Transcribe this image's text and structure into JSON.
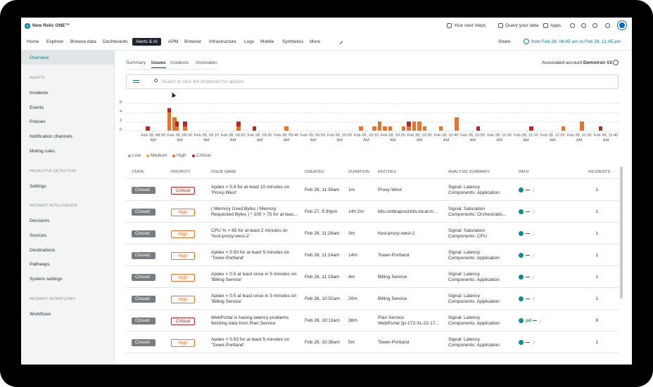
{
  "header": {
    "logo": "New Relic ONE™",
    "actions": [
      "Your next steps",
      "Query your data",
      "Apps"
    ]
  },
  "nav": {
    "items": [
      "Home",
      "Explorer",
      "Browse data",
      "Dashboards",
      "Alerts & AI",
      "APM",
      "Browser",
      "Infrastructure",
      "Logs",
      "Mobile",
      "Synthetics",
      "More"
    ],
    "active": "Alerts & AI",
    "share": "Share",
    "time_range": "from Feb 28, 08:45 am to Feb 28, 11:45 am"
  },
  "sidebar": {
    "overview": "Overview",
    "sections": [
      {
        "title": "ALERTS",
        "items": [
          "Incidents",
          "Events",
          "Policies",
          "Notification channels",
          "Muting rules"
        ]
      },
      {
        "title": "PROACTIVE DETECTION",
        "items": [
          "Settings"
        ]
      },
      {
        "title": "INCIDENT INTELLIGENCE",
        "items": [
          "Decisions",
          "Sources",
          "Destinations",
          "Pathways",
          "System settings"
        ]
      },
      {
        "title": "INCIDENT WORKFLOWS",
        "items": [
          "Workflows"
        ]
      }
    ]
  },
  "tabs": {
    "items": [
      "Summary",
      "Issues",
      "Incidents",
      "Anomalies"
    ],
    "active": "Issues",
    "account_label": "Associated account:",
    "account": "Demotron V2"
  },
  "filter": {
    "placeholder": "Search or click the dropdown for options"
  },
  "chart_data": {
    "type": "bar",
    "stacked": true,
    "x": [
      "08:48",
      "08:56",
      "08:58",
      "08:59",
      "09:02",
      "09:22",
      "09:28",
      "09:40",
      "10:08",
      "10:13",
      "10:15",
      "10:17",
      "10:19",
      "10:24",
      "10:26",
      "10:28",
      "10:30",
      "10:32",
      "10:38",
      "10:44",
      "10:52",
      "11:12",
      "11:24",
      "11:31",
      "11:38"
    ],
    "series": [
      {
        "name": "Low",
        "color": "#9aa1a5",
        "values": [
          0,
          0,
          0,
          0,
          0,
          0,
          0,
          0,
          0,
          0,
          0,
          0,
          0,
          0,
          0,
          0,
          0,
          0,
          0,
          0,
          0,
          0,
          0,
          0,
          0
        ]
      },
      {
        "name": "Medium",
        "color": "#efa637",
        "values": [
          0,
          0,
          0,
          0,
          0,
          0,
          0,
          0,
          0,
          0,
          0,
          0,
          0,
          0,
          0,
          0,
          0,
          0,
          0,
          0,
          0,
          0,
          0,
          0,
          0
        ]
      },
      {
        "name": "High",
        "color": "#e8742c",
        "values": [
          0,
          4,
          3,
          1,
          1,
          1,
          0,
          1,
          1,
          1,
          2,
          1,
          1,
          1,
          1,
          2,
          2,
          1,
          1,
          3,
          0,
          0,
          1,
          2,
          0
        ]
      },
      {
        "name": "Critical",
        "color": "#b8252c",
        "values": [
          1,
          1,
          0,
          1,
          1,
          1,
          1,
          0,
          0,
          0,
          0,
          0,
          0,
          0,
          1,
          0,
          0,
          0,
          0,
          0,
          1,
          1,
          0,
          0,
          1
        ]
      }
    ],
    "xlim": [
      "08:39",
      "11:45"
    ],
    "xticks": [
      {
        "value": "08:50",
        "label": "Feb 28, 08:50 AM"
      },
      {
        "value": "09:00",
        "label": "Feb 28, 09:00 AM"
      },
      {
        "value": "09:10",
        "label": "Feb 28, 09:10 AM"
      },
      {
        "value": "09:20",
        "label": "Feb 28, 09:20 AM"
      },
      {
        "value": "09:30",
        "label": "Feb 28, 09:30 AM"
      },
      {
        "value": "09:40",
        "label": "Feb 28, 09:40 AM"
      },
      {
        "value": "09:50",
        "label": "Feb 28, 09:50 AM"
      },
      {
        "value": "10:00",
        "label": "Feb 28, 10:00 AM"
      },
      {
        "value": "10:10",
        "label": "Feb 28, 10:10 AM"
      },
      {
        "value": "10:20",
        "label": "Feb 28, 10:20 AM"
      },
      {
        "value": "10:30",
        "label": "Feb 28, 10:30 AM"
      },
      {
        "value": "10:40",
        "label": "Feb 28, 10:40 AM"
      },
      {
        "value": "10:50",
        "label": "Feb 28, 10:50 AM"
      },
      {
        "value": "11:00",
        "label": "Feb 28, 11:00 AM"
      },
      {
        "value": "11:10",
        "label": "Feb 28, 11:10 AM"
      },
      {
        "value": "11:20",
        "label": "Feb 28, 11:20 AM"
      },
      {
        "value": "11:30",
        "label": "Feb 28, 11:30 AM"
      },
      {
        "value": "11:40",
        "label": "Feb 28, 11:40 AM"
      }
    ],
    "ylim": [
      0,
      6
    ],
    "yticks": [
      0,
      2,
      4,
      6
    ],
    "grid": true
  },
  "table": {
    "columns": [
      "STATE",
      "PRIORITY",
      "ISSUE NAME",
      "CREATED",
      "DURATION",
      "ENTITIES",
      "ANALYSIS SUMMARY",
      "PATH",
      "INCIDENTS"
    ],
    "rows": [
      {
        "state": "Closed",
        "priority": "Critical",
        "issue": "Apdex < 0.9 for at least 10 minutes on 'Proxy-West'",
        "created": "Feb 28, 11:39am",
        "duration": "1m",
        "entities": [
          "Proxy-West"
        ],
        "summary": [
          "Signal: Latency",
          "Components: Application"
        ],
        "incidents": "1"
      },
      {
        "state": "Closed",
        "priority": "High",
        "issue": "( Memory Used Bytes / Memory Requested Bytes ) * 100 > 75 for at leas...",
        "created": "Feb 27, 9:30pm",
        "duration": "14h 2m",
        "entities": [
          "k8s:umbraprod.k8s.local:m..."
        ],
        "summary": [
          "Signal: Saturation",
          "Components: Orchestratio..."
        ],
        "incidents": "1"
      },
      {
        "state": "Closed",
        "priority": "High",
        "issue": "CPU % > 85 for at least 2 minutes on 'host-proxy-west-2'",
        "created": "Feb 28, 11:28am",
        "duration": "3m",
        "entities": [
          "host-proxy-west-2"
        ],
        "summary": [
          "Signal: Saturation",
          "Components: CPU"
        ],
        "incidents": "1"
      },
      {
        "state": "Closed",
        "priority": "High",
        "issue": "Apdex < 0.93 for at least 5 minutes on 'Tower-Portland'",
        "created": "Feb 28, 11:14am",
        "duration": "14m",
        "entities": [
          "Tower-Portland"
        ],
        "summary": [
          "Signal: Latency",
          "Components: Application"
        ],
        "incidents": "1"
      },
      {
        "state": "Closed",
        "priority": "High",
        "issue": "Apdex < 0.5 at least once in 5 minutes on 'Billing Service'",
        "created": "Feb 28, 11:19am",
        "duration": "4m",
        "entities": [
          "Billing Service"
        ],
        "summary": [
          "Signal: Latency",
          "Components: Application"
        ],
        "incidents": "1"
      },
      {
        "state": "Closed",
        "priority": "High",
        "issue": "Apdex < 0.5 at least once in 5 minutes on 'Billing Service'",
        "created": "Feb 28, 10:52am",
        "duration": "20m",
        "entities": [
          "Billing Service"
        ],
        "summary": [
          "Signal: Latency",
          "Components: Application"
        ],
        "incidents": "1"
      },
      {
        "state": "Closed",
        "priority": "Critical",
        "issue": "WebPortal is having latency problems fetching data from Plan Service",
        "created": "Feb 28, 10:13am",
        "duration": "38m",
        "entities": [
          "Plan Service",
          "WebPortal (ip-172-31-22-17..."
        ],
        "summary": [
          "Signal: Latency",
          "Components: Application"
        ],
        "path_label": "pd",
        "incidents": "9"
      },
      {
        "state": "Closed",
        "priority": "High",
        "issue": "Apdex < 0.93 for at least 5 minutes on 'Tower-Portland'",
        "created": "Feb 28, 10:38am",
        "duration": "5m",
        "entities": [
          "Tower-Portland"
        ],
        "summary": [
          "Signal: Latency",
          "Components: Application"
        ],
        "incidents": "1"
      }
    ]
  }
}
